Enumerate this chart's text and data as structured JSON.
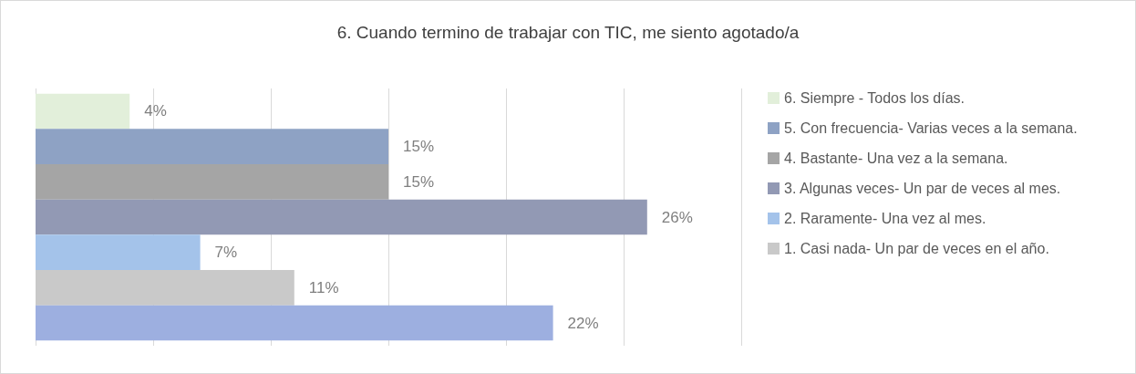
{
  "chart_data": {
    "type": "bar",
    "orientation": "horizontal",
    "title": "6. Cuando termino de trabajar con TIC, me siento agotado/a",
    "categories": [
      null
    ],
    "series": [
      {
        "name": "6. Siempre - Todos los días.",
        "color": "#e2efda",
        "values": [
          4
        ],
        "value_labels": [
          "4%"
        ]
      },
      {
        "name": "5. Con frecuencia- Varias veces a la semana.",
        "color": "#8ea2c4",
        "values": [
          15
        ],
        "value_labels": [
          "15%"
        ]
      },
      {
        "name": "4. Bastante- Una vez a la semana.",
        "color": "#a5a5a5",
        "values": [
          15
        ],
        "value_labels": [
          "15%"
        ]
      },
      {
        "name": "3. Algunas veces- Un par de veces al mes.",
        "color": "#9299b4",
        "values": [
          26
        ],
        "value_labels": [
          "26%"
        ]
      },
      {
        "name": "2. Raramente- Una vez al mes.",
        "color": "#a4c3ea",
        "values": [
          7
        ],
        "value_labels": [
          "7%"
        ]
      },
      {
        "name": "1. Casi nada- Un par de veces en el año.",
        "color": "#c9c9c9",
        "values": [
          11
        ],
        "value_labels": [
          "11%"
        ]
      },
      {
        "color": "#9dafe0",
        "values": [
          22
        ],
        "value_labels": [
          "22%"
        ]
      }
    ],
    "xlim": [
      0,
      30
    ],
    "xticks": [
      {
        "value": 0,
        "label": null
      },
      {
        "value": 5,
        "label": null
      },
      {
        "value": 10,
        "label": null
      },
      {
        "value": 15,
        "label": null
      },
      {
        "value": 20,
        "label": null
      },
      {
        "value": 25,
        "label": null
      },
      {
        "value": 30,
        "label": null
      }
    ],
    "grid": "x",
    "legend": "right"
  }
}
